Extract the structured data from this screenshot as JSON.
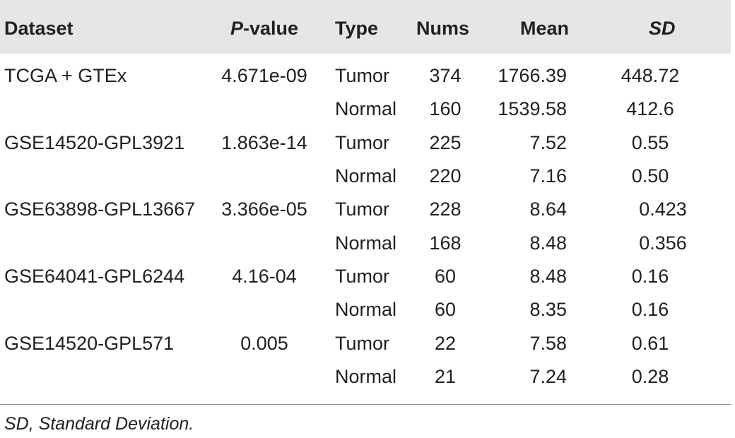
{
  "headers": {
    "dataset": "Dataset",
    "p_italic": "P",
    "p_rest": "-value",
    "type": "Type",
    "nums": "Nums",
    "mean": "Mean",
    "sd": "SD"
  },
  "rows": [
    {
      "dataset": "TCGA + GTEx",
      "p": "4.671e-09",
      "type": "Tumor",
      "nums": "374",
      "mean": "1766.39",
      "sd": "448.72"
    },
    {
      "dataset": "",
      "p": "",
      "type": "Normal",
      "nums": "160",
      "mean": "1539.58",
      "sd": "412.6"
    },
    {
      "dataset": "GSE14520-GPL3921",
      "p": "1.863e-14",
      "type": "Tumor",
      "nums": "225",
      "mean": "7.52",
      "sd": "0.55"
    },
    {
      "dataset": "",
      "p": "",
      "type": "Normal",
      "nums": "220",
      "mean": "7.16",
      "sd": "0.50"
    },
    {
      "dataset": "GSE63898-GPL13667",
      "p": "3.366e-05",
      "type": "Tumor",
      "nums": "228",
      "mean": "8.64",
      "sd": "0.423"
    },
    {
      "dataset": "",
      "p": "",
      "type": "Normal",
      "nums": "168",
      "mean": "8.48",
      "sd": "0.356"
    },
    {
      "dataset": "GSE64041-GPL6244",
      "p": "4.16-04",
      "type": "Tumor",
      "nums": "60",
      "mean": "8.48",
      "sd": "0.16"
    },
    {
      "dataset": "",
      "p": "",
      "type": "Normal",
      "nums": "60",
      "mean": "8.35",
      "sd": "0.16"
    },
    {
      "dataset": "GSE14520-GPL571",
      "p": "0.005",
      "type": "Tumor",
      "nums": "22",
      "mean": "7.58",
      "sd": "0.61"
    },
    {
      "dataset": "",
      "p": "",
      "type": "Normal",
      "nums": "21",
      "mean": "7.24",
      "sd": "0.28"
    }
  ],
  "footnote": "SD, Standard Deviation."
}
